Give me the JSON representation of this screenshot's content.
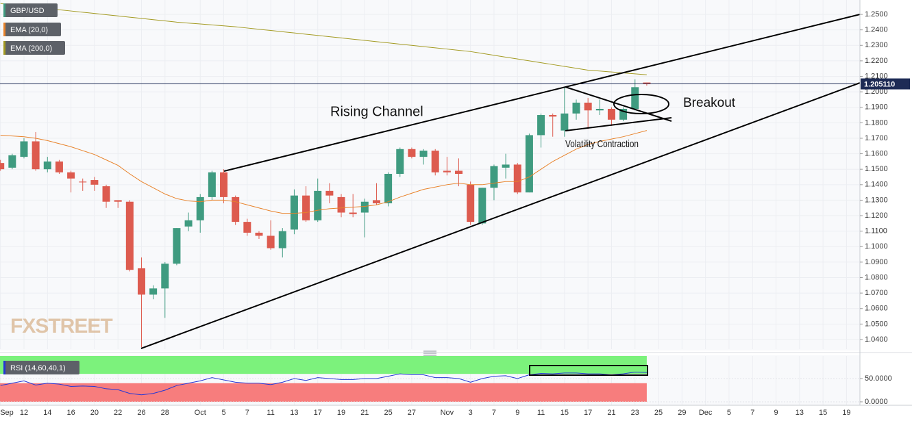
{
  "chart_data": {
    "type": "candlestick",
    "symbol": "GBP/USD",
    "up_color": "#3f9b80",
    "down_color": "#dd5b4f",
    "grid": true,
    "xlim": [
      -0.04,
      73.14
    ],
    "xticks": [
      {
        "value": 0,
        "label": "Sep"
      },
      {
        "value": 2,
        "label": "12"
      },
      {
        "value": 4,
        "label": "14"
      },
      {
        "value": 6,
        "label": "16"
      },
      {
        "value": 8,
        "label": "20"
      },
      {
        "value": 10,
        "label": "22"
      },
      {
        "value": 12,
        "label": "26"
      },
      {
        "value": 14,
        "label": "28"
      },
      {
        "value": 17,
        "label": "Oct"
      },
      {
        "value": 19,
        "label": "5"
      },
      {
        "value": 21,
        "label": "7"
      },
      {
        "value": 23,
        "label": "11"
      },
      {
        "value": 25,
        "label": "13"
      },
      {
        "value": 27,
        "label": "17"
      },
      {
        "value": 29,
        "label": "19"
      },
      {
        "value": 31,
        "label": "21"
      },
      {
        "value": 33,
        "label": "25"
      },
      {
        "value": 35,
        "label": "27"
      },
      {
        "value": 38,
        "label": "Nov"
      },
      {
        "value": 40,
        "label": "3"
      },
      {
        "value": 42,
        "label": "7"
      },
      {
        "value": 44,
        "label": "9"
      },
      {
        "value": 46,
        "label": "11"
      },
      {
        "value": 48,
        "label": "15"
      },
      {
        "value": 50,
        "label": "17"
      },
      {
        "value": 52,
        "label": "21"
      },
      {
        "value": 54,
        "label": "23"
      },
      {
        "value": 56,
        "label": "25"
      },
      {
        "value": 58,
        "label": "29"
      },
      {
        "value": 60,
        "label": "Dec"
      },
      {
        "value": 62,
        "label": "5"
      },
      {
        "value": 64,
        "label": "7"
      },
      {
        "value": 66,
        "label": "9"
      },
      {
        "value": 68,
        "label": "13"
      },
      {
        "value": 70,
        "label": "15"
      },
      {
        "value": 72,
        "label": "19"
      }
    ],
    "ylim": [
      1.0338,
      1.2593
    ],
    "yticks": [
      {
        "value": 1.25,
        "label": "1.2500"
      },
      {
        "value": 1.24,
        "label": "1.2400"
      },
      {
        "value": 1.23,
        "label": "1.2300"
      },
      {
        "value": 1.22,
        "label": "1.2200"
      },
      {
        "value": 1.21,
        "label": "1.2100"
      },
      {
        "value": 1.2,
        "label": "1.2000"
      },
      {
        "value": 1.19,
        "label": "1.1900"
      },
      {
        "value": 1.18,
        "label": "1.1800"
      },
      {
        "value": 1.17,
        "label": "1.1700"
      },
      {
        "value": 1.16,
        "label": "1.1600"
      },
      {
        "value": 1.15,
        "label": "1.1500"
      },
      {
        "value": 1.14,
        "label": "1.1400"
      },
      {
        "value": 1.13,
        "label": "1.1300"
      },
      {
        "value": 1.12,
        "label": "1.1200"
      },
      {
        "value": 1.11,
        "label": "1.1100"
      },
      {
        "value": 1.1,
        "label": "1.1000"
      },
      {
        "value": 1.09,
        "label": "1.0900"
      },
      {
        "value": 1.08,
        "label": "1.0800"
      },
      {
        "value": 1.07,
        "label": "1.0700"
      },
      {
        "value": 1.06,
        "label": "1.0600"
      },
      {
        "value": 1.05,
        "label": "1.0500"
      },
      {
        "value": 1.04,
        "label": "1.0400"
      }
    ],
    "open": [
      1.154,
      1.151,
      1.158,
      1.168,
      1.15,
      1.155,
      1.148,
      1.142,
      1.143,
      1.139,
      1.13,
      1.129,
      1.086,
      1.069,
      1.073,
      1.089,
      1.113,
      1.117,
      1.132,
      1.148,
      1.132,
      1.116,
      1.109,
      1.107,
      1.099,
      1.111,
      1.133,
      1.117,
      1.136,
      1.132,
      1.122,
      1.122,
      1.13,
      1.128,
      1.147,
      1.163,
      1.158,
      1.162,
      1.149,
      1.149,
      1.14,
      1.115,
      1.138,
      1.151,
      1.153,
      1.135,
      1.172,
      1.185,
      1.175,
      1.186,
      1.193,
      1.188,
      1.189,
      1.182,
      1.189,
      1.206
    ],
    "high": [
      1.156,
      1.16,
      1.17,
      1.174,
      1.158,
      1.156,
      1.149,
      1.144,
      1.145,
      1.14,
      1.13,
      1.13,
      1.093,
      1.075,
      1.09,
      1.112,
      1.122,
      1.134,
      1.149,
      1.15,
      1.133,
      1.118,
      1.11,
      1.117,
      1.112,
      1.137,
      1.139,
      1.144,
      1.141,
      1.134,
      1.134,
      1.131,
      1.141,
      1.148,
      1.164,
      1.164,
      1.163,
      1.163,
      1.158,
      1.157,
      1.142,
      1.138,
      1.153,
      1.16,
      1.154,
      1.173,
      1.186,
      1.186,
      1.203,
      1.195,
      1.196,
      1.195,
      1.19,
      1.19,
      1.208,
      1.206
    ],
    "low": [
      1.149,
      1.15,
      1.157,
      1.149,
      1.148,
      1.147,
      1.135,
      1.136,
      1.136,
      1.125,
      1.125,
      1.084,
      1.035,
      1.066,
      1.054,
      1.088,
      1.11,
      1.109,
      1.13,
      1.128,
      1.114,
      1.107,
      1.105,
      1.098,
      1.093,
      1.108,
      1.116,
      1.116,
      1.128,
      1.119,
      1.119,
      1.106,
      1.127,
      1.126,
      1.145,
      1.157,
      1.153,
      1.146,
      1.146,
      1.139,
      1.114,
      1.114,
      1.13,
      1.144,
      1.134,
      1.135,
      1.164,
      1.171,
      1.171,
      1.182,
      1.176,
      1.185,
      1.178,
      1.181,
      1.188,
      1.204
    ],
    "close": [
      1.15,
      1.159,
      1.168,
      1.15,
      1.155,
      1.148,
      1.144,
      1.1415,
      1.14,
      1.129,
      1.129,
      1.085,
      1.069,
      1.073,
      1.089,
      1.112,
      1.117,
      1.132,
      1.148,
      1.132,
      1.116,
      1.109,
      1.107,
      1.099,
      1.11,
      1.133,
      1.117,
      1.136,
      1.133,
      1.122,
      1.121,
      1.129,
      1.128,
      1.147,
      1.163,
      1.158,
      1.162,
      1.148,
      1.148,
      1.147,
      1.116,
      1.138,
      1.152,
      1.153,
      1.135,
      1.172,
      1.185,
      1.184,
      1.186,
      1.193,
      1.188,
      1.189,
      1.182,
      1.189,
      1.203,
      1.205
    ],
    "overlays": [
      {
        "name": "EMA (20,0)",
        "color": "#e8822a",
        "values": [
          1.172,
          1.1715,
          1.171,
          1.17,
          1.1685,
          1.1665,
          1.1645,
          1.162,
          1.1595,
          1.156,
          1.1525,
          1.147,
          1.142,
          1.138,
          1.134,
          1.131,
          1.1295,
          1.129,
          1.13,
          1.13,
          1.129,
          1.127,
          1.125,
          1.123,
          1.1215,
          1.1215,
          1.122,
          1.1235,
          1.1245,
          1.125,
          1.1255,
          1.126,
          1.127,
          1.129,
          1.132,
          1.1345,
          1.137,
          1.1385,
          1.14,
          1.141,
          1.14,
          1.14,
          1.141,
          1.142,
          1.142,
          1.145,
          1.15,
          1.155,
          1.159,
          1.163,
          1.166,
          1.168,
          1.1695,
          1.171,
          1.173,
          1.175
        ]
      },
      {
        "name": "EMA (200,0)",
        "color": "#a39a22",
        "values": [
          1.257,
          1.2562,
          1.2554,
          1.2546,
          1.2538,
          1.253,
          1.2522,
          1.2514,
          1.2506,
          1.2498,
          1.249,
          1.2482,
          1.2474,
          1.2466,
          1.2458,
          1.245,
          1.2444,
          1.2438,
          1.2432,
          1.2426,
          1.242,
          1.2412,
          1.2404,
          1.2396,
          1.2388,
          1.238,
          1.2372,
          1.2364,
          1.2356,
          1.2348,
          1.234,
          1.2332,
          1.2324,
          1.2316,
          1.2308,
          1.23,
          1.2292,
          1.2284,
          1.2276,
          1.2268,
          1.226,
          1.2248,
          1.2236,
          1.2224,
          1.2212,
          1.22,
          1.2188,
          1.2176,
          1.2164,
          1.2152,
          1.214,
          1.2134,
          1.2128,
          1.2122,
          1.2116,
          1.211
        ]
      }
    ],
    "last_price": {
      "value": 1.20511,
      "label": "1.205110"
    },
    "annotations": {
      "channel": "Rising Channel",
      "breakout": "Breakout",
      "contraction": "Volatility  Contraction"
    },
    "watermark": "FXSTREET",
    "rsi": {
      "name": "RSI (14,60,40,1)",
      "color": "#2336d6",
      "ylim": [
        -7.4,
        98.5
      ],
      "yticks": [
        {
          "value": 50,
          "label": "50.0000"
        },
        {
          "value": 0,
          "label": "0.0000"
        }
      ],
      "upper_level": 60,
      "lower_level": 40,
      "upper_color": "#7cf27c",
      "lower_color": "#f77d7d",
      "values": [
        35,
        40,
        45,
        36,
        40,
        38,
        33,
        34,
        33,
        28,
        26,
        18,
        15,
        18,
        25,
        35,
        40,
        45,
        52,
        47,
        42,
        40,
        40,
        37,
        42,
        50,
        46,
        52,
        50,
        48,
        48,
        50,
        50,
        55,
        60,
        58,
        58,
        52,
        52,
        50,
        42,
        50,
        55,
        56,
        50,
        58,
        61,
        60,
        62,
        62,
        60,
        60,
        58,
        60,
        64,
        63
      ]
    }
  }
}
